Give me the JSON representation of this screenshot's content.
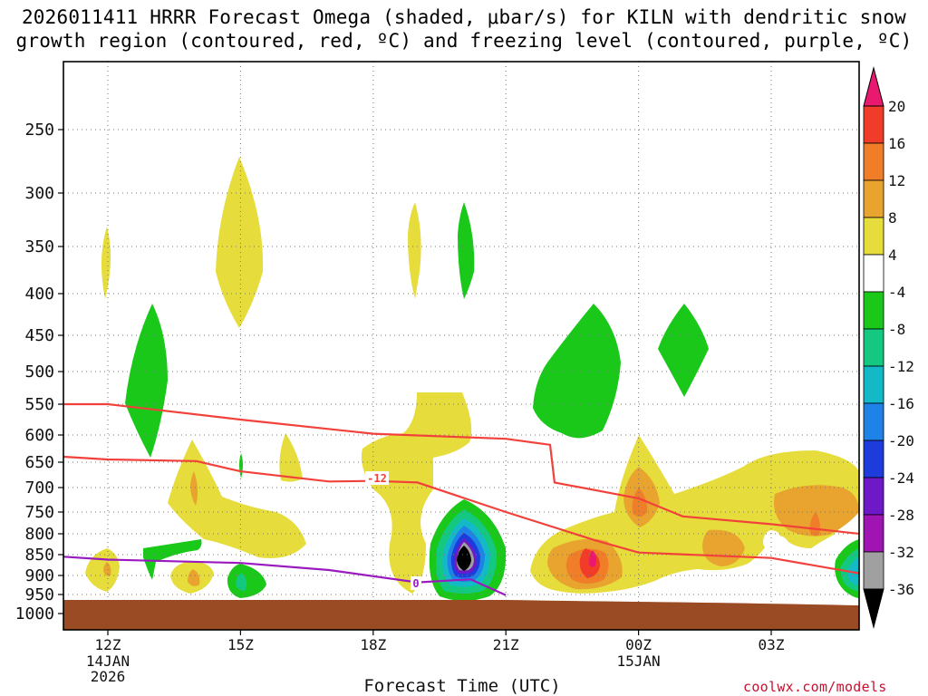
{
  "title_line1": "2026011411 HRRR Forecast Omega (shaded, μbar/s) for KILN with dendritic snow",
  "title_line2": "growth region (contoured, red, ºC) and freezing level (contoured, purple, ºC)",
  "credit": "coolwx.com/models",
  "chart_data": {
    "type": "heatmap",
    "title": "2026011411 HRRR Forecast Omega (shaded, μbar/s) for KILN with dendritic snow growth region (contoured, red, ºC) and freezing level (contoured, purple, ºC)",
    "xlabel": "Forecast Time (UTC)",
    "ylabel": "",
    "x_range_hours_utc": [
      11,
      29
    ],
    "y_range_hpa": [
      200,
      1020
    ],
    "y_ticks": [
      "250",
      "300",
      "350",
      "400",
      "450",
      "500",
      "550",
      "600",
      "650",
      "700",
      "750",
      "800",
      "850",
      "900",
      "950",
      "1000"
    ],
    "x_ticks": [
      {
        "label": "12Z",
        "sub": [
          "14JAN",
          "2026"
        ],
        "hour": 12
      },
      {
        "label": "15Z",
        "sub": [],
        "hour": 15
      },
      {
        "label": "18Z",
        "sub": [],
        "hour": 18
      },
      {
        "label": "21Z",
        "sub": [],
        "hour": 21
      },
      {
        "label": "00Z",
        "sub": [
          "15JAN"
        ],
        "hour": 24
      },
      {
        "label": "03Z",
        "sub": [],
        "hour": 27
      }
    ],
    "colorbar": {
      "labels": [
        "20",
        "16",
        "12",
        "8",
        "4",
        "-4",
        "-8",
        "-12",
        "-16",
        "-20",
        "-24",
        "-28",
        "-32",
        "-36"
      ],
      "bins": [
        {
          "range": "> 20",
          "color": "#e8196e"
        },
        {
          "range": "16 to 20",
          "color": "#f03c28"
        },
        {
          "range": "12 to 16",
          "color": "#f07d28"
        },
        {
          "range": "8 to 12",
          "color": "#e8a42e"
        },
        {
          "range": "4 to 8",
          "color": "#e6dc3c"
        },
        {
          "range": "-4 to 4",
          "color": "#ffffff"
        },
        {
          "range": "-8 to -4",
          "color": "#19c819"
        },
        {
          "range": "-12 to -8",
          "color": "#14c882"
        },
        {
          "range": "-16 to -12",
          "color": "#14b9c8"
        },
        {
          "range": "-20 to -16",
          "color": "#1e82e6"
        },
        {
          "range": "-24 to -20",
          "color": "#1e3cdc"
        },
        {
          "range": "-28 to -24",
          "color": "#6e19c8"
        },
        {
          "range": "-32 to -28",
          "color": "#a014b4"
        },
        {
          "range": "-36 to -32",
          "color": "#a0a0a0"
        },
        {
          "range": "< -36",
          "color": "#000000"
        }
      ]
    },
    "ground_color": "#9a4b24",
    "dgz_contour_labels": [
      "-12"
    ],
    "freezing_level_label": "0",
    "dgz_top_hpa": [
      [
        11,
        550
      ],
      [
        12,
        550
      ],
      [
        15,
        575
      ],
      [
        18,
        598
      ],
      [
        21,
        607
      ],
      [
        22,
        618
      ],
      [
        22.1,
        690
      ],
      [
        24,
        722
      ],
      [
        25,
        760
      ],
      [
        27,
        778
      ],
      [
        29,
        800
      ]
    ],
    "dgz_bottom_hpa": [
      [
        11,
        640
      ],
      [
        12,
        645
      ],
      [
        14,
        648
      ],
      [
        15,
        668
      ],
      [
        17,
        688
      ],
      [
        18,
        687
      ],
      [
        19,
        690
      ],
      [
        21,
        750
      ],
      [
        23,
        815
      ],
      [
        24,
        845
      ],
      [
        27,
        858
      ],
      [
        29,
        895
      ]
    ],
    "freezing_level_hpa": [
      [
        11,
        855
      ],
      [
        12,
        862
      ],
      [
        15,
        870
      ],
      [
        17,
        887
      ],
      [
        19,
        918
      ],
      [
        20.2,
        910
      ],
      [
        21,
        952
      ]
    ],
    "omega_features": [
      {
        "name": "ascent cell 20Z",
        "time_utc": 20.0,
        "p_hpa": 870,
        "min_omega": "< -36",
        "colors": [
          "#19c819",
          "#14c882",
          "#14b9c8",
          "#1e82e6",
          "#1e3cdc",
          "#6e19c8",
          "#a0a0a0",
          "#000000"
        ]
      },
      {
        "name": "ascent cell 04Z",
        "time_utc": 28.8,
        "p_hpa": 885,
        "min_omega": "-16",
        "colors": [
          "#19c819",
          "#14c882",
          "#14b9c8"
        ]
      },
      {
        "name": "descent max 23Z",
        "time_utc": 23.0,
        "p_hpa": 855,
        "max_omega": "> 20",
        "colors": [
          "#e6dc3c",
          "#e8a42e",
          "#f07d28",
          "#f03c28",
          "#e8196e"
        ]
      },
      {
        "name": "descent 00Z",
        "time_utc": 24.0,
        "p_hpa": 735,
        "max_omega": "16",
        "colors": [
          "#e6dc3c",
          "#e8a42e",
          "#f07d28"
        ]
      }
    ]
  }
}
